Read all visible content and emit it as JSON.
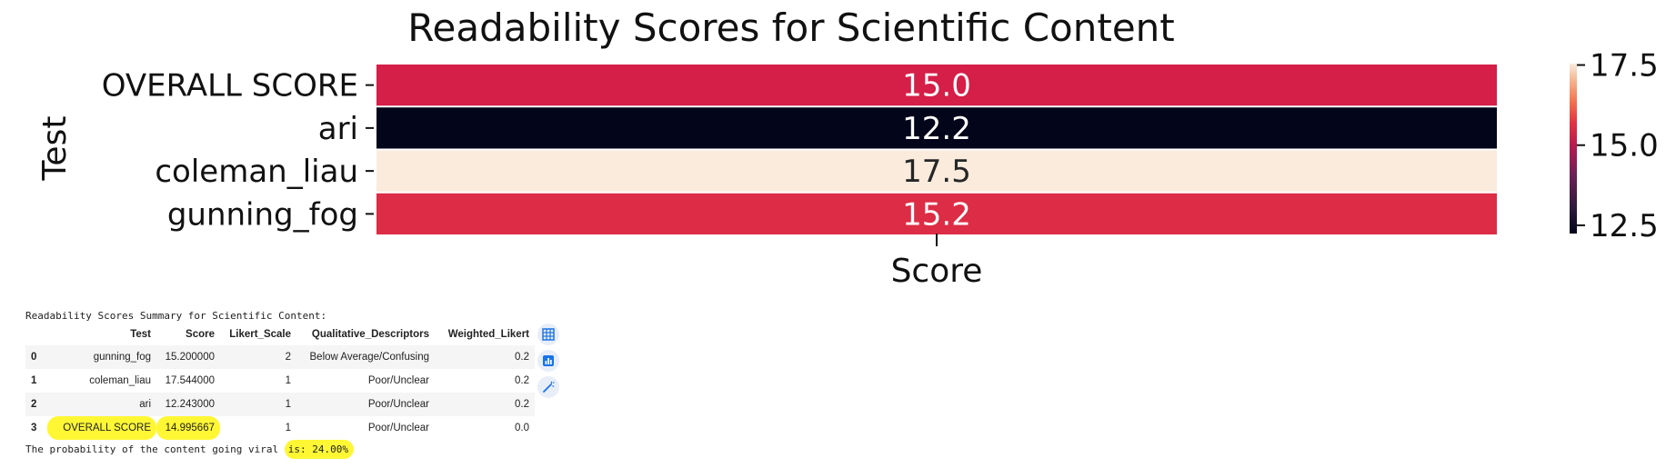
{
  "chart_data": {
    "type": "heatmap",
    "title": "Readability Scores for Scientific Content",
    "ylabel": "Test",
    "xlabel": "Score",
    "rows": [
      "OVERALL SCORE",
      "ari",
      "coleman_liau",
      "gunning_fog"
    ],
    "values": [
      15.0,
      12.2,
      17.5,
      15.2
    ],
    "value_labels": [
      "15.0",
      "12.2",
      "17.5",
      "15.2"
    ],
    "colorbar": {
      "min": 12.243,
      "max": 17.544,
      "ticks": [
        "17.5",
        "15.0",
        "12.5"
      ],
      "tick_values": [
        17.5,
        15.0,
        12.5
      ]
    },
    "colormap": "rocket",
    "cell_colors": [
      "#d51e48",
      "#03051a",
      "#faebdd",
      "#dd2c45"
    ],
    "grid": false
  },
  "summary": {
    "header": "Readability Scores Summary for Scientific Content:",
    "columns": [
      "Test",
      "Score",
      "Likert_Scale",
      "Qualitative_Descriptors",
      "Weighted_Likert"
    ],
    "rows": [
      {
        "index": "0",
        "test": "gunning_fog",
        "score": "15.200000",
        "likert": "2",
        "qualitative": "Below Average/Confusing",
        "weighted": "0.2"
      },
      {
        "index": "1",
        "test": "coleman_liau",
        "score": "17.544000",
        "likert": "1",
        "qualitative": "Poor/Unclear",
        "weighted": "0.2"
      },
      {
        "index": "2",
        "test": "ari",
        "score": "12.243000",
        "likert": "1",
        "qualitative": "Poor/Unclear",
        "weighted": "0.2"
      },
      {
        "index": "3",
        "test": "OVERALL SCORE",
        "score": "14.995667",
        "likert": "1",
        "qualitative": "Poor/Unclear",
        "weighted": "0.0"
      }
    ]
  },
  "viral": {
    "prefix": "The probability of the content going viral ",
    "highlight": "is: 24.00%"
  },
  "toolbar": {
    "icons": [
      "table-icon",
      "chart-icon",
      "magic-wand-icon"
    ]
  },
  "colors": {
    "highlight": "#fff734",
    "icon_bg": "#e8eef8",
    "icon_fg": "#1a73e8"
  }
}
